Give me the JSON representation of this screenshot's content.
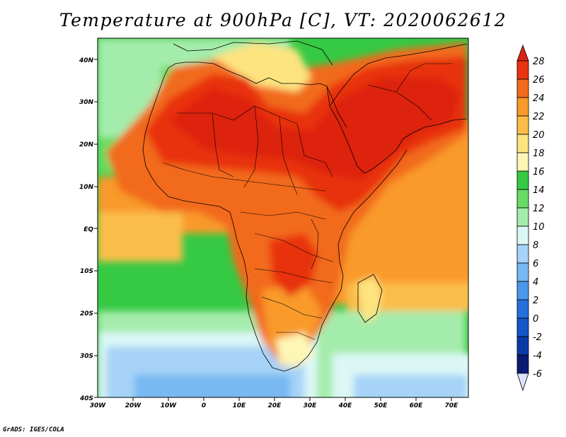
{
  "title": "Temperature at 900hPa [C], VT: 2020062612",
  "credit": "GrADS: IGES/COLA",
  "map": {
    "lat_labels": [
      "40N",
      "30N",
      "20N",
      "10N",
      "EQ",
      "10S",
      "20S",
      "30S",
      "40S"
    ],
    "lon_labels": [
      "30W",
      "20W",
      "10W",
      "0",
      "10E",
      "20E",
      "30E",
      "40E",
      "50E",
      "60E",
      "70E"
    ]
  },
  "colorbar": {
    "labels": [
      "28",
      "26",
      "24",
      "22",
      "20",
      "18",
      "16",
      "14",
      "12",
      "10",
      "8",
      "6",
      "4",
      "2",
      "0",
      "-2",
      "-4",
      "-6"
    ],
    "colors": {
      "above_28": "#dd2211",
      "26_28": "#e83311",
      "24_26": "#f26a1a",
      "22_24": "#f99a2a",
      "20_22": "#fbbd48",
      "18_20": "#fde47f",
      "16_18": "#fdf6b4",
      "14_16": "#36c944",
      "12_14": "#68dc64",
      "10_12": "#a4ecab",
      "8_10": "#dcf7f6",
      "6_8": "#a6d3f7",
      "4_6": "#78b8f3",
      "2_4": "#4b98ea",
      "0_2": "#2470dc",
      "m2_0": "#1457c8",
      "m4_m2": "#0a3aa8",
      "m6_m4": "#0b1b73",
      "below_m6": "#dbe3fb"
    }
  }
}
